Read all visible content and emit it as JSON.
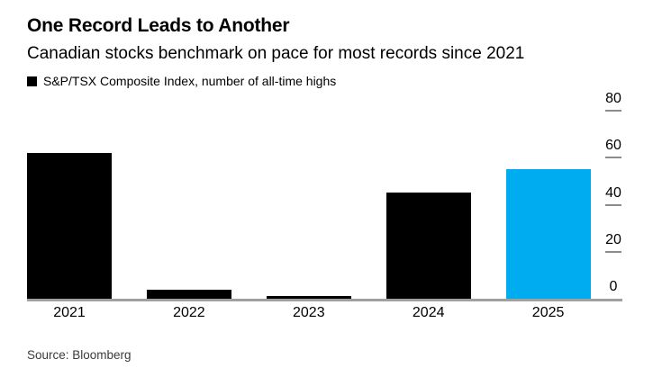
{
  "header": {
    "title": "One Record Leads to Another",
    "subtitle": "Canadian stocks benchmark on pace for most records since 2021"
  },
  "legend": {
    "label": "S&P/TSX Composite Index, number of all-time highs",
    "swatch_color": "#000000"
  },
  "source": "Source: Bloomberg",
  "colors": {
    "bar_default": "#000000",
    "bar_highlight": "#00acf0",
    "axis_line": "#a0a0a0",
    "tick_dash": "#8c8c8c",
    "source_text": "#3b3b3b"
  },
  "chart_data": {
    "type": "bar",
    "title": "One Record Leads to Another",
    "subtitle": "Canadian stocks benchmark on pace for most records since 2021",
    "series_label": "S&P/TSX Composite Index, number of all-time highs",
    "categories": [
      "2021",
      "2022",
      "2023",
      "2024",
      "2025"
    ],
    "values": [
      62,
      4,
      1,
      45,
      55
    ],
    "highlight_category": "2025",
    "highlight_color": "#00acf0",
    "bar_color": "#000000",
    "yticks": [
      0,
      20,
      40,
      60,
      80
    ],
    "ylim": [
      0,
      85
    ],
    "axis_side": "right",
    "grid": false,
    "legend_position": "top-left",
    "xlabel": "",
    "ylabel": ""
  }
}
